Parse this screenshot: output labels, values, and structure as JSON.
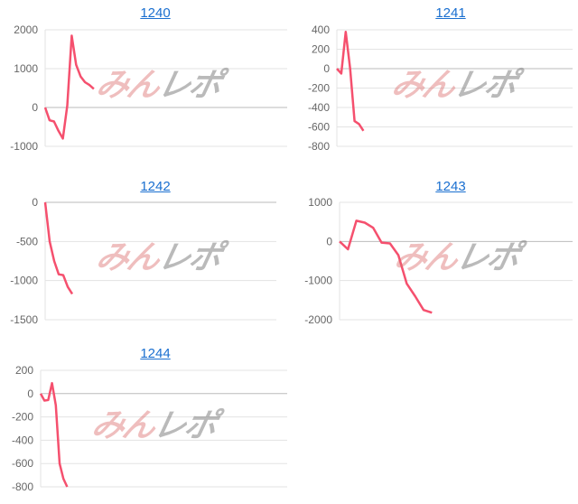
{
  "watermark": {
    "part1": "みん",
    "part2": "レポ"
  },
  "line_color": "#f5506e",
  "chart_data": [
    {
      "type": "line",
      "title": "1240",
      "yticks": [
        2000,
        1000,
        0,
        -1000
      ],
      "ylim": [
        -1000,
        2000
      ],
      "grid": true,
      "values": [
        0,
        -330,
        -360,
        -600,
        -800,
        50,
        1850,
        1100,
        800,
        650,
        580,
        480
      ]
    },
    {
      "type": "line",
      "title": "1241",
      "yticks": [
        400,
        200,
        0,
        -200,
        -400,
        -600,
        -800
      ],
      "ylim": [
        -800,
        400
      ],
      "grid": true,
      "values": [
        0,
        -50,
        380,
        0,
        -540,
        -570,
        -640
      ]
    },
    {
      "type": "line",
      "title": "1242",
      "yticks": [
        0,
        -500,
        -1000,
        -1500
      ],
      "ylim": [
        -1500,
        0
      ],
      "grid": true,
      "values": [
        0,
        -500,
        -750,
        -920,
        -930,
        -1080,
        -1170
      ]
    },
    {
      "type": "line",
      "title": "1243",
      "yticks": [
        1000,
        0,
        -1000,
        -2000
      ],
      "ylim": [
        -2000,
        1000
      ],
      "grid": true,
      "values": [
        0,
        -200,
        530,
        480,
        350,
        -30,
        -50,
        -350,
        -1080,
        -1400,
        -1750,
        -1820
      ]
    },
    {
      "type": "line",
      "title": "1244",
      "yticks": [
        200,
        0,
        -200,
        -400,
        -600,
        -800
      ],
      "ylim": [
        -800,
        200
      ],
      "grid": true,
      "values": [
        0,
        -60,
        -55,
        90,
        -100,
        -600,
        -730,
        -800
      ]
    }
  ]
}
